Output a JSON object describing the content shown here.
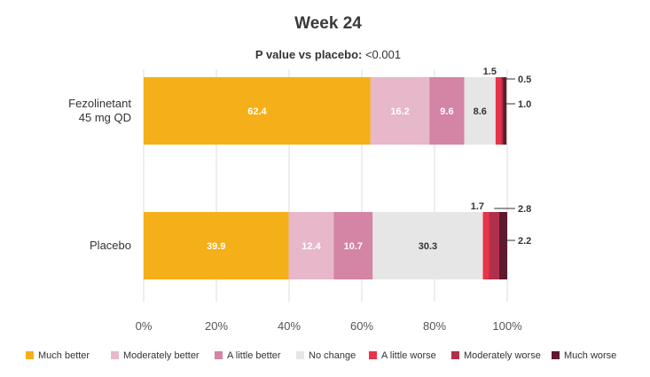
{
  "chart_data": {
    "type": "bar",
    "orientation": "horizontal",
    "stacked": true,
    "title": "Week 24",
    "subtitle_label": "P value vs placebo:",
    "subtitle_value": "<0.001",
    "categories": [
      "Fezolinetant\n45 mg QD",
      "Placebo"
    ],
    "series": [
      {
        "name": "Much better",
        "color": "#F5AF19",
        "values": [
          62.4,
          39.9
        ]
      },
      {
        "name": "Moderately better",
        "color": "#E6B8CA",
        "values": [
          16.2,
          12.4
        ]
      },
      {
        "name": "A little better",
        "color": "#D484A5",
        "values": [
          9.6,
          10.7
        ]
      },
      {
        "name": "No change",
        "color": "#E6E6E6",
        "values": [
          8.6,
          30.3
        ]
      },
      {
        "name": "A little worse",
        "color": "#E8344A",
        "values": [
          1.5,
          1.7
        ]
      },
      {
        "name": "Moderately worse",
        "color": "#B0304B",
        "values": [
          0.5,
          2.8
        ]
      },
      {
        "name": "Much worse",
        "color": "#5E1A2E",
        "values": [
          1.0,
          2.2
        ]
      }
    ],
    "x_ticks": [
      "0%",
      "20%",
      "40%",
      "60%",
      "80%",
      "100%"
    ],
    "xlim": [
      0,
      100
    ],
    "grid": true,
    "legend_position": "bottom"
  }
}
